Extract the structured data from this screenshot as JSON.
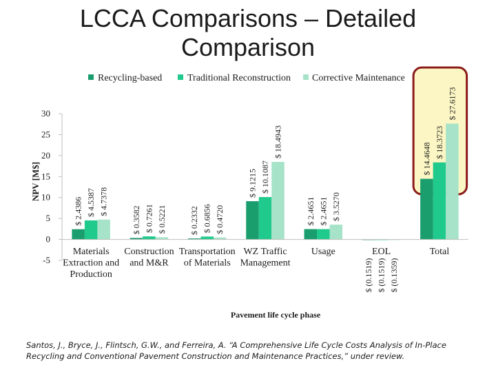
{
  "title_lines": [
    "LCCA Comparisons – Detailed",
    "Comparison"
  ],
  "chart_data": {
    "type": "bar",
    "title": "LCCA Comparisons – Detailed Comparison",
    "xlabel": "Pavement life cycle phase",
    "ylabel": "NPV [M$]",
    "ylim": [
      -5,
      30
    ],
    "yticks": [
      -5,
      0,
      5,
      10,
      15,
      20,
      25,
      30
    ],
    "categories": [
      [
        "Materials",
        "Extraction and",
        "Production"
      ],
      [
        "Construction",
        "and M&R"
      ],
      [
        "Transportation",
        "of Materials"
      ],
      [
        "WZ Traffic",
        "Management"
      ],
      [
        "Usage"
      ],
      [
        "EOL"
      ],
      [
        "Total"
      ]
    ],
    "series": [
      {
        "name": "Recycling-based",
        "color": "#1a9e6e",
        "values": [
          2.4386,
          0.3582,
          0.2332,
          9.1215,
          2.4651,
          -0.1519,
          14.4648
        ],
        "labels": [
          "$ 2.4386",
          "$ 0.3582",
          "$ 0.2332",
          "$ 9.1215",
          "$ 2.4651",
          "$ (0.1519)",
          "$ 14.4648"
        ]
      },
      {
        "name": "Traditional Reconstruction",
        "color": "#20c98c",
        "values": [
          4.5387,
          0.7261,
          0.6856,
          10.1087,
          2.4651,
          -0.1519,
          18.3723
        ],
        "labels": [
          "$ 4.5387",
          "$ 0.7261",
          "$ 0.6856",
          "$ 10.1087",
          "$ 2.4651",
          "$ (0.1519)",
          "$ 18.3723"
        ]
      },
      {
        "name": "Corrective Maintenance",
        "color": "#a6e3c8",
        "values": [
          4.7378,
          0.5221,
          0.472,
          18.4943,
          3.527,
          -0.1359,
          27.6173
        ],
        "labels": [
          "$ 4.7378",
          "$ 0.5221",
          "$ 0.4720",
          "$ 18.4943",
          "$ 3.5270",
          "$ (0.1359)",
          "$ 27.6173"
        ]
      }
    ],
    "legend": "top-center",
    "highlight": {
      "category": "Total",
      "color": "#8b1a1a",
      "fill": "#fbf6c4"
    },
    "grid": false
  },
  "citation": "Santos, J., Bryce, J., Flintsch, G.W., and Ferreira, A. “A Comprehensive Life Cycle Costs Analysis of In-Place Recycling and Conventional Pavement Construction and Maintenance Practices,”  under review."
}
